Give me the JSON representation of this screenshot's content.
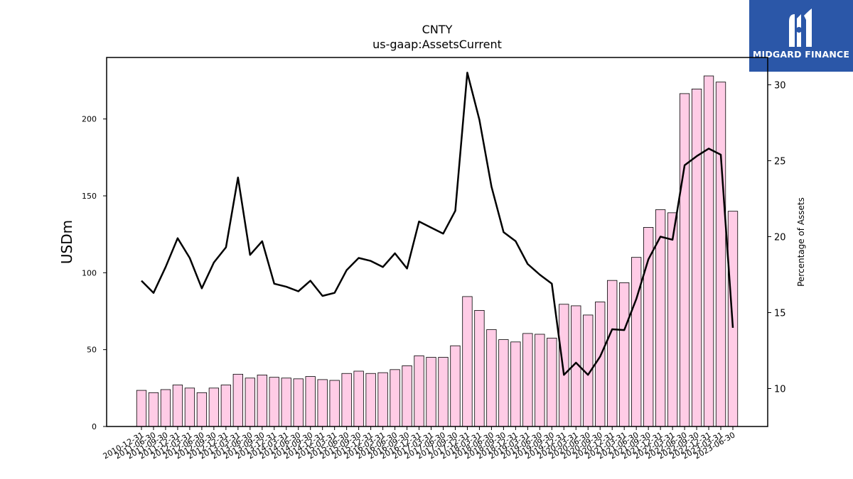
{
  "logo": {
    "text": "MIDGARD FINANCE",
    "bg": "#2b57a8"
  },
  "chart_data": {
    "type": "bar+line",
    "title": "CNTY",
    "subtitle": "us-gaap:AssetsCurrent",
    "ylabel": "USDm",
    "y2label": "Percentage of Assets",
    "ylim": [
      0,
      240
    ],
    "y2lim": [
      7.5,
      31.8
    ],
    "yticks": [
      0,
      50,
      100,
      150,
      200
    ],
    "y2ticks": [
      10,
      15,
      20,
      25,
      30
    ],
    "bar_color": "#ffcce6",
    "line_color": "#000000",
    "categories": [
      "2010-12-31",
      "2011-06-30",
      "2011-09-30",
      "2011-12-31",
      "2012-03-31",
      "2012-06-30",
      "2012-09-30",
      "2012-12-31",
      "2013-03-31",
      "2013-06-30",
      "2013-09-30",
      "2013-12-31",
      "2014-03-31",
      "2014-06-30",
      "2014-09-30",
      "2014-12-31",
      "2015-03-31",
      "2015-06-30",
      "2015-09-30",
      "2015-12-31",
      "2016-03-31",
      "2016-06-30",
      "2016-09-30",
      "2016-12-31",
      "2017-03-31",
      "2017-06-30",
      "2017-09-30",
      "2017-12-31",
      "2018-03-31",
      "2018-06-30",
      "2018-09-30",
      "2018-12-31",
      "2019-03-31",
      "2019-06-30",
      "2019-09-30",
      "2019-12-31",
      "2020-03-31",
      "2020-06-30",
      "2020-09-30",
      "2020-12-31",
      "2021-03-31",
      "2021-06-30",
      "2021-09-30",
      "2021-12-31",
      "2022-03-31",
      "2022-06-30",
      "2022-09-30",
      "2022-12-31",
      "2023-03-31",
      "2023-06-30"
    ],
    "series": [
      {
        "type": "bar",
        "axis": "left",
        "values": [
          23.5,
          22,
          24,
          27,
          25,
          22,
          25,
          27,
          34,
          31.5,
          33.5,
          32,
          31.5,
          31,
          32.5,
          30.5,
          30,
          34.5,
          36,
          34.5,
          35,
          37,
          39.5,
          46,
          45,
          45,
          52.5,
          84.5,
          75.5,
          63,
          56.5,
          55,
          60.5,
          60,
          57.5,
          79.5,
          78.5,
          72.5,
          81,
          95,
          93.5,
          110,
          129.5,
          141,
          139,
          216.5,
          219.5,
          228,
          224,
          140
        ]
      },
      {
        "type": "line",
        "axis": "right",
        "values": [
          17.1,
          16.3,
          18,
          19.9,
          18.6,
          16.6,
          18.3,
          19.3,
          23.9,
          18.8,
          19.7,
          16.9,
          16.7,
          16.4,
          17.1,
          16.1,
          16.3,
          17.8,
          18.6,
          18.4,
          18.0,
          18.9,
          17.9,
          21.0,
          20.6,
          20.2,
          21.7,
          30.8,
          27.7,
          23.3,
          20.3,
          19.7,
          18.2,
          17.5,
          16.9,
          10.9,
          11.7,
          10.9,
          12.1,
          13.9,
          13.85,
          15.9,
          18.5,
          20.0,
          19.8,
          24.7,
          25.3,
          25.8,
          25.4,
          14.0
        ]
      }
    ],
    "grid": false,
    "legend": "none"
  }
}
